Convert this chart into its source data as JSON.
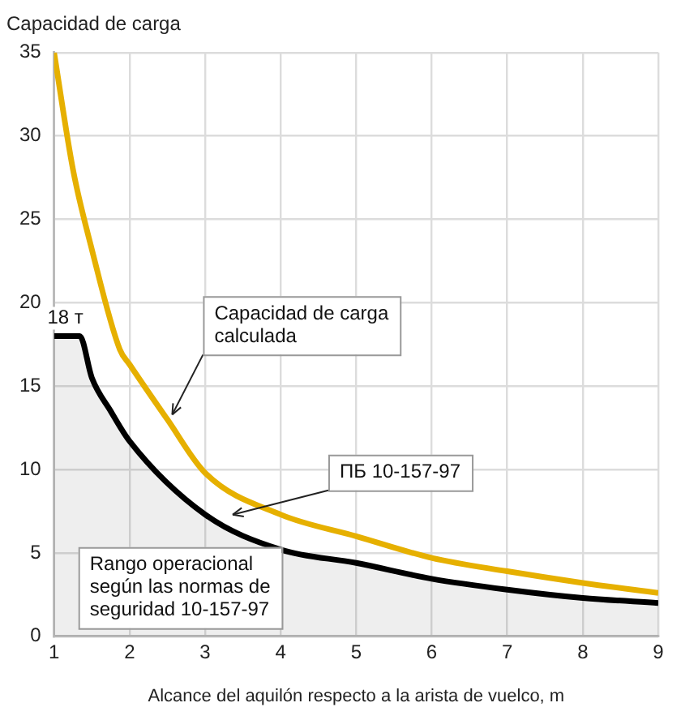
{
  "chart_data": {
    "type": "line",
    "title": "Capacidad de carga",
    "xlabel": "Alcance del aquilón respecto a la arista de vuelco, m",
    "series": [
      {
        "type": "line",
        "color": "#e6b000",
        "x": [
          1,
          1.25,
          1.5,
          1.87,
          2,
          2.5,
          3,
          4,
          5,
          6,
          7,
          8,
          9
        ],
        "values": [
          35,
          28,
          23.2,
          17.2,
          16.3,
          13,
          9.8,
          7.3,
          6,
          4.7,
          3.9,
          3.2,
          2.6
        ]
      },
      {
        "type": "area",
        "color": "#000000",
        "x": [
          1,
          1.34,
          1.5,
          1.75,
          2,
          3,
          4,
          5,
          6,
          7,
          8,
          9
        ],
        "values": [
          18,
          18,
          15.5,
          13.5,
          11.7,
          7.3,
          5.2,
          4.4,
          3.45,
          2.8,
          2.3,
          2
        ]
      }
    ],
    "xlim": [
      1,
      9
    ],
    "xticks": [
      1,
      2,
      3,
      4,
      5,
      6,
      7,
      8,
      9
    ],
    "ylim": [
      0,
      35
    ],
    "yticks": [
      0,
      5,
      10,
      15,
      20,
      25,
      30,
      35
    ],
    "grid": true,
    "legend": false,
    "marker": "none",
    "line_style": "solid",
    "annotations": [
      {
        "text": "18 т",
        "x": 1.15,
        "y": 18
      },
      {
        "text": "Capacidad de carga calculada",
        "x": 2.5,
        "y": 13
      },
      {
        "text": "ПБ 10-157-97",
        "x": 3.3,
        "y": 7
      },
      "Rango operacional según las normas de seguridad 10-157-97"
    ]
  }
}
